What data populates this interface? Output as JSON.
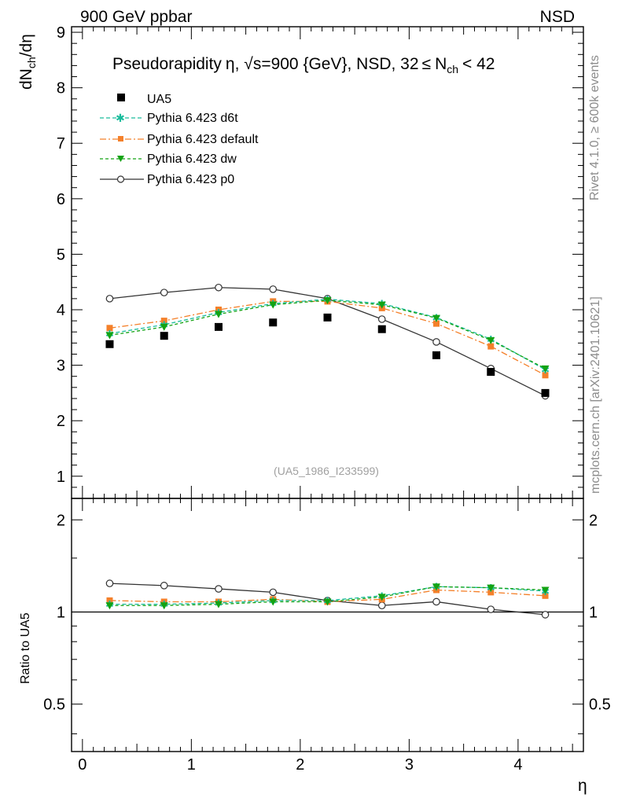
{
  "header": {
    "left": "900 GeV ppbar",
    "right": "NSD"
  },
  "side_labels": {
    "rivet": "Rivet 4.1.0, ≥ 600k events",
    "mcplots": "mcplots.cern.ch [arXiv:2401.10621]"
  },
  "watermark": "(UA5_1986_I233599)",
  "colors": {
    "data": "#000000",
    "d6t": "#1abc9c",
    "default": "#f4802a",
    "dw": "#13a313",
    "p0": "#333333"
  },
  "chart_data": [
    {
      "type": "line",
      "title_parts": {
        "prefix": "Pseudorapidity",
        "eta": "η",
        "sqrt": "√",
        "s_eq": "s=900 {GeV}, NSD, 32",
        "leq": "≤",
        "n": "N",
        "ch": "ch",
        "tail": "< 42"
      },
      "ylabel_parts": {
        "d": "dN",
        "sub": "ch",
        "rest": "/dη"
      },
      "xlim": [
        -0.1,
        4.6
      ],
      "ylim": [
        0.6,
        9.1
      ],
      "yticks": [
        1,
        2,
        3,
        4,
        5,
        6,
        7,
        8,
        9
      ],
      "x": [
        0.25,
        0.75,
        1.25,
        1.75,
        2.25,
        2.75,
        3.25,
        3.75,
        4.25
      ],
      "data": {
        "name": "UA5",
        "values": [
          3.38,
          3.53,
          3.69,
          3.77,
          3.86,
          3.65,
          3.18,
          2.88,
          2.5
        ]
      },
      "series": [
        {
          "key": "d6t",
          "name": "Pythia 6.423 d6t",
          "values": [
            3.57,
            3.73,
            3.95,
            4.11,
            4.19,
            4.11,
            3.86,
            3.47,
            2.92
          ]
        },
        {
          "key": "default",
          "name": "Pythia 6.423 default",
          "values": [
            3.67,
            3.8,
            4.0,
            4.15,
            4.15,
            4.03,
            3.75,
            3.34,
            2.82
          ]
        },
        {
          "key": "dw",
          "name": "Pythia 6.423 dw",
          "values": [
            3.54,
            3.69,
            3.92,
            4.09,
            4.17,
            4.09,
            3.85,
            3.45,
            2.94
          ]
        },
        {
          "key": "p0",
          "name": "Pythia 6.423 p0",
          "values": [
            4.2,
            4.31,
            4.4,
            4.37,
            4.2,
            3.83,
            3.42,
            2.94,
            2.45
          ]
        }
      ]
    },
    {
      "type": "line",
      "ylabel": "Ratio to UA5",
      "xlabel": "η",
      "xlim": [
        -0.1,
        4.6
      ],
      "ylim": [
        0.35,
        2.35
      ],
      "yticks": [
        0.5,
        1,
        2
      ],
      "ytick_labels": [
        "0.5",
        "1",
        "2"
      ],
      "xticks": [
        0,
        1,
        2,
        3,
        4
      ],
      "xtick_labels": [
        "0",
        "1",
        "2",
        "3",
        "4"
      ],
      "reference_line": 1,
      "x": [
        0.25,
        0.75,
        1.25,
        1.75,
        2.25,
        2.75,
        3.25,
        3.75,
        4.25
      ],
      "series": [
        {
          "key": "d6t",
          "name": "Pythia 6.423 d6t",
          "values": [
            1.06,
            1.06,
            1.07,
            1.09,
            1.09,
            1.13,
            1.21,
            1.2,
            1.17
          ]
        },
        {
          "key": "default",
          "name": "Pythia 6.423 default",
          "values": [
            1.09,
            1.08,
            1.08,
            1.1,
            1.08,
            1.1,
            1.18,
            1.16,
            1.13
          ]
        },
        {
          "key": "dw",
          "name": "Pythia 6.423 dw",
          "values": [
            1.05,
            1.05,
            1.06,
            1.08,
            1.08,
            1.12,
            1.21,
            1.2,
            1.18
          ]
        },
        {
          "key": "p0",
          "name": "Pythia 6.423 p0",
          "values": [
            1.24,
            1.22,
            1.19,
            1.16,
            1.09,
            1.05,
            1.08,
            1.02,
            0.98
          ]
        }
      ]
    }
  ]
}
